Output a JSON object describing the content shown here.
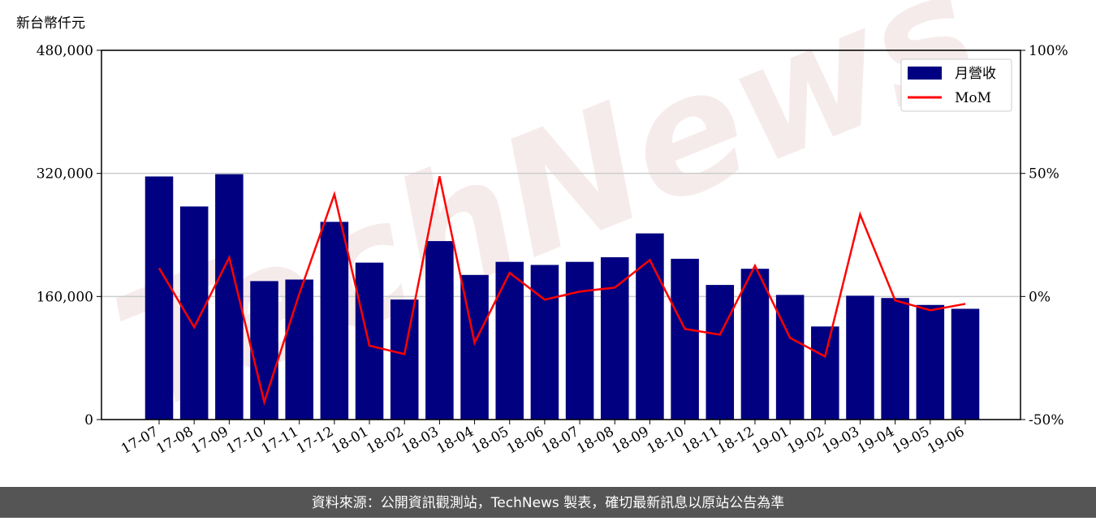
{
  "chart_data": {
    "type": "bar_line",
    "y_label": "新台幣仟元",
    "watermark": "TechNews",
    "footer": "資料來源：公開資訊觀測站，TechNews 製表，確切最新訊息以原站公告為準",
    "categories": [
      "17-07",
      "17-08",
      "17-09",
      "17-10",
      "17-11",
      "17-12",
      "18-01",
      "18-02",
      "18-03",
      "18-04",
      "18-05",
      "18-06",
      "18-07",
      "18-08",
      "18-09",
      "18-10",
      "18-11",
      "18-12",
      "19-01",
      "19-02",
      "19-03",
      "19-04",
      "19-05",
      "19-06"
    ],
    "series": [
      {
        "name": "月營收",
        "type": "bar",
        "color": "#000080",
        "values": [
          316000,
          277000,
          319000,
          180000,
          182000,
          257000,
          204000,
          156000,
          232000,
          188000,
          205000,
          201000,
          205000,
          211000,
          242000,
          209000,
          175000,
          196000,
          162000,
          121000,
          161000,
          158000,
          149000,
          144000
        ]
      },
      {
        "name": "MoM",
        "type": "line",
        "axis": "y2",
        "color": "#ff0000",
        "values": [
          11.5,
          -12.5,
          15.8,
          -42.9,
          1.1,
          41.5,
          -20,
          -23.4,
          48.8,
          -18.8,
          9.6,
          -1.3,
          2,
          3.6,
          14.8,
          -13.2,
          -15.5,
          12.5,
          -16.8,
          -24.4,
          33.3,
          -1.6,
          -5.6,
          -3
        ]
      }
    ],
    "ylim": [
      0,
      480000
    ],
    "yticks": [
      0,
      {
        "value": 160000,
        "label": "160,000"
      },
      {
        "value": 320000,
        "label": "320,000"
      },
      {
        "value": 480000,
        "label": "480,000"
      }
    ],
    "y2lim": [
      -50,
      100
    ],
    "y2ticks": [
      {
        "value": -50,
        "label": "-50%"
      },
      {
        "value": 0,
        "label": "0%"
      },
      {
        "value": 50,
        "label": "50%"
      },
      {
        "value": 100,
        "label": "100%"
      }
    ],
    "grid": true,
    "legend": "upper right"
  }
}
